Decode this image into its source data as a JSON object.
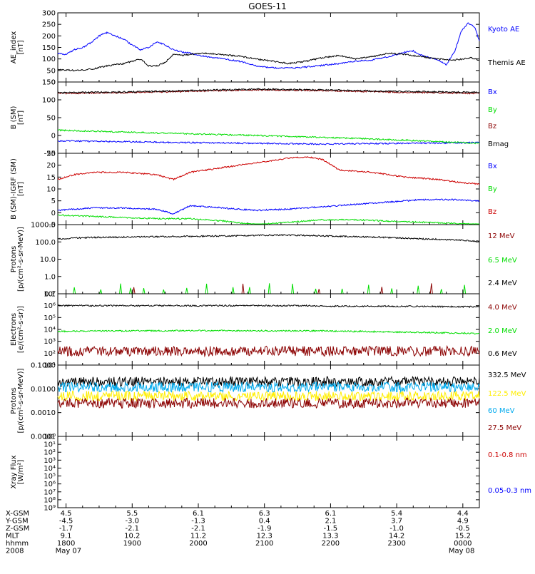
{
  "title": "GOES-11",
  "colors": {
    "black": "#000000",
    "blue": "#0000ff",
    "red": "#cc0000",
    "darkred": "#8b0000",
    "green": "#00dd00",
    "yellow": "#ffee00",
    "cyan": "#00aaee"
  },
  "chart_data": [
    {
      "type": "line",
      "ylabel": [
        "AE_index",
        "[nT]"
      ],
      "ylim": [
        0,
        300
      ],
      "scale": "linear",
      "yticks": [
        "0",
        "50",
        "100",
        "150",
        "200",
        "250",
        "300"
      ],
      "series": [
        {
          "name": "Kyoto AE",
          "color": "blue",
          "values": [
            [
              0,
              125
            ],
            [
              0.25,
              120
            ],
            [
              0.5,
              140
            ],
            [
              0.75,
              150
            ],
            [
              1.0,
              170
            ],
            [
              1.25,
              200
            ],
            [
              1.5,
              215
            ],
            [
              1.75,
              200
            ],
            [
              2.0,
              185
            ],
            [
              2.25,
              160
            ],
            [
              2.5,
              140
            ],
            [
              2.75,
              150
            ],
            [
              3.0,
              175
            ],
            [
              3.25,
              160
            ],
            [
              3.5,
              140
            ],
            [
              3.75,
              130
            ],
            [
              4.0,
              125
            ],
            [
              4.25,
              115
            ],
            [
              4.5,
              110
            ],
            [
              4.75,
              105
            ],
            [
              5.0,
              100
            ],
            [
              5.25,
              95
            ],
            [
              5.5,
              90
            ],
            [
              5.75,
              80
            ],
            [
              6.0,
              70
            ],
            [
              6.5,
              62
            ],
            [
              7.0,
              60
            ],
            [
              7.5,
              65
            ],
            [
              8.0,
              72
            ],
            [
              8.5,
              80
            ],
            [
              9.0,
              90
            ],
            [
              9.5,
              95
            ],
            [
              10.0,
              110
            ],
            [
              10.5,
              130
            ],
            [
              10.75,
              135
            ],
            [
              11.0,
              115
            ],
            [
              11.5,
              95
            ],
            [
              11.75,
              75
            ],
            [
              12.0,
              130
            ],
            [
              12.2,
              220
            ],
            [
              12.4,
              255
            ],
            [
              12.6,
              240
            ],
            [
              12.75,
              180
            ]
          ]
        },
        {
          "name": "Themis AE",
          "color": "black",
          "values": [
            [
              0,
              55
            ],
            [
              0.5,
              50
            ],
            [
              1.0,
              55
            ],
            [
              1.5,
              70
            ],
            [
              2.0,
              80
            ],
            [
              2.5,
              100
            ],
            [
              2.75,
              70
            ],
            [
              3.0,
              70
            ],
            [
              3.25,
              85
            ],
            [
              3.5,
              120
            ],
            [
              3.75,
              115
            ],
            [
              4.0,
              120
            ],
            [
              4.5,
              125
            ],
            [
              5.0,
              118
            ],
            [
              5.5,
              112
            ],
            [
              6.0,
              100
            ],
            [
              6.5,
              90
            ],
            [
              7.0,
              80
            ],
            [
              7.5,
              90
            ],
            [
              8.0,
              105
            ],
            [
              8.5,
              115
            ],
            [
              9.0,
              100
            ],
            [
              9.5,
              110
            ],
            [
              10.0,
              125
            ],
            [
              10.5,
              120
            ],
            [
              11.0,
              110
            ],
            [
              11.5,
              100
            ],
            [
              12.0,
              95
            ],
            [
              12.5,
              105
            ],
            [
              12.75,
              95
            ]
          ]
        }
      ],
      "legend": [
        "Kyoto AE",
        "Themis AE"
      ]
    },
    {
      "type": "line",
      "ylabel": [
        "B (SM)",
        "[nT]"
      ],
      "ylim": [
        -50,
        150
      ],
      "scale": "linear",
      "yticks": [
        "-50",
        "0",
        "50",
        "100",
        "150"
      ],
      "series": [
        {
          "name": "Bx",
          "color": "blue",
          "values": [
            [
              0,
              -15
            ],
            [
              4,
              -20
            ],
            [
              8,
              -24
            ],
            [
              12.75,
              -20
            ]
          ]
        },
        {
          "name": "By",
          "color": "green",
          "values": [
            [
              0,
              15
            ],
            [
              3,
              7
            ],
            [
              6,
              0
            ],
            [
              9,
              -8
            ],
            [
              11,
              -15
            ],
            [
              12.75,
              -22
            ]
          ]
        },
        {
          "name": "Bz",
          "color": "darkred",
          "values": [
            [
              0,
              118
            ],
            [
              2,
              120
            ],
            [
              4,
              124
            ],
            [
              6,
              128
            ],
            [
              8,
              126
            ],
            [
              10,
              122
            ],
            [
              12.75,
              118
            ]
          ]
        },
        {
          "name": "Bmag",
          "color": "black",
          "values": [
            [
              0,
              120
            ],
            [
              2,
              122
            ],
            [
              4,
              126
            ],
            [
              6,
              130
            ],
            [
              8,
              128
            ],
            [
              10,
              124
            ],
            [
              12.75,
              121
            ]
          ]
        }
      ],
      "legend": [
        "Bx",
        "By",
        "Bz",
        "Bmag"
      ]
    },
    {
      "type": "line",
      "ylabel": [
        "B (SM)-IGRF (SM)",
        "[nT]"
      ],
      "ylim": [
        -5,
        25
      ],
      "scale": "linear",
      "yticks": [
        "-5",
        "0",
        "5",
        "10",
        "15",
        "20",
        "25"
      ],
      "series": [
        {
          "name": "Bx",
          "color": "blue",
          "values": [
            [
              0,
              1
            ],
            [
              1,
              2
            ],
            [
              2,
              2
            ],
            [
              3,
              1.5
            ],
            [
              3.5,
              -0.5
            ],
            [
              4,
              3
            ],
            [
              5,
              2
            ],
            [
              6,
              1
            ],
            [
              7,
              1.5
            ],
            [
              8,
              2.5
            ],
            [
              9,
              3.5
            ],
            [
              10,
              4.5
            ],
            [
              11,
              5.5
            ],
            [
              12,
              5.5
            ],
            [
              12.75,
              5
            ]
          ]
        },
        {
          "name": "By",
          "color": "green",
          "values": [
            [
              0,
              -1
            ],
            [
              1,
              -1.5
            ],
            [
              2,
              -2
            ],
            [
              3,
              -2.5
            ],
            [
              4,
              -2.5
            ],
            [
              5,
              -3.5
            ],
            [
              6,
              -5
            ],
            [
              7,
              -4
            ],
            [
              8,
              -3
            ],
            [
              9,
              -3
            ],
            [
              10,
              -3.5
            ],
            [
              11,
              -4
            ],
            [
              12,
              -4.5
            ],
            [
              12.75,
              -5
            ]
          ]
        },
        {
          "name": "Bz",
          "color": "red",
          "values": [
            [
              0,
              14
            ],
            [
              0.5,
              16
            ],
            [
              1.0,
              17
            ],
            [
              2.0,
              17
            ],
            [
              3.0,
              16
            ],
            [
              3.5,
              14
            ],
            [
              4.0,
              17
            ],
            [
              5.0,
              19
            ],
            [
              6.0,
              21
            ],
            [
              7.0,
              23
            ],
            [
              7.5,
              23.5
            ],
            [
              8.0,
              22.5
            ],
            [
              8.5,
              18
            ],
            [
              9.5,
              17
            ],
            [
              10.5,
              15
            ],
            [
              11.5,
              14
            ],
            [
              12.0,
              13
            ],
            [
              12.75,
              12
            ]
          ]
        }
      ],
      "legend": [
        "Bx",
        "By",
        "Bz"
      ]
    },
    {
      "type": "line",
      "ylabel": [
        "Protons",
        "[p/(cm²-s-sr-MeV)]"
      ],
      "ylim": [
        0.1,
        1000
      ],
      "scale": "log",
      "yticks": [
        "0.1",
        "1.0",
        "10.0",
        "100.0",
        "1000.0"
      ],
      "series": [
        {
          "name": "2.4 MeV",
          "color": "black",
          "values": [
            [
              0,
              150
            ],
            [
              1,
              180
            ],
            [
              2,
              190
            ],
            [
              3,
              200
            ],
            [
              4,
              210
            ],
            [
              5,
              220
            ],
            [
              6,
              240
            ],
            [
              7,
              250
            ],
            [
              8,
              220
            ],
            [
              9,
              200
            ],
            [
              10,
              180
            ],
            [
              11,
              150
            ],
            [
              12,
              130
            ],
            [
              12.75,
              110
            ]
          ]
        },
        {
          "name": "6.5 MeV",
          "color": "green",
          "values": [
            [
              0,
              0.1
            ],
            [
              12.75,
              0.1
            ]
          ],
          "spikes": [
            0.5,
            1.3,
            1.9,
            2.2,
            2.6,
            3.2,
            3.9,
            4.5,
            5.3,
            5.8,
            6.4,
            7.1,
            7.8,
            8.6,
            9.4,
            10.1,
            10.9,
            11.6,
            12.3
          ]
        },
        {
          "name": "12 MeV",
          "color": "darkred",
          "values": [
            [
              0,
              0.1
            ],
            [
              12.75,
              0.1
            ]
          ],
          "spikes": [
            2.3,
            5.6,
            7.9,
            9.8,
            11.3
          ]
        }
      ],
      "legend": [
        "12 MeV",
        "6.5 MeV",
        "2.4 MeV"
      ]
    },
    {
      "type": "line",
      "ylabel": [
        "Electrons",
        "[e/(cm²-s-sr)]"
      ],
      "ylim": [
        10,
        10000000
      ],
      "scale": "log",
      "yticks": [
        "10¹",
        "10²",
        "10³",
        "10⁴",
        "10⁵",
        "10⁶",
        "10⁷"
      ],
      "series": [
        {
          "name": "0.6 MeV",
          "color": "black",
          "values": [
            [
              0,
              1000000
            ],
            [
              4,
              1000000
            ],
            [
              7.5,
              1000000
            ],
            [
              8,
              900000
            ],
            [
              10,
              900000
            ],
            [
              12.75,
              800000
            ]
          ]
        },
        {
          "name": "2.0 MeV",
          "color": "green",
          "values": [
            [
              0,
              7000
            ],
            [
              4,
              8000
            ],
            [
              8,
              7500
            ],
            [
              12.75,
              4500
            ]
          ]
        },
        {
          "name": "4.0 MeV",
          "color": "darkred",
          "values": [
            [
              0,
              150
            ],
            [
              12.75,
              150
            ]
          ],
          "noise": true
        }
      ],
      "legend": [
        "4.0 MeV",
        "2.0 MeV",
        "0.6 MeV"
      ]
    },
    {
      "type": "line",
      "ylabel": [
        "Protons",
        "[p/(cm²-s-sr-MeV)]"
      ],
      "ylim": [
        0.0001,
        0.1
      ],
      "scale": "log",
      "yticks": [
        "0.0001",
        "0.0010",
        "0.0100",
        "0.1000"
      ],
      "series": [
        {
          "name": "332.5 MeV",
          "color": "black",
          "values": [
            [
              0,
              0.02
            ],
            [
              12.75,
              0.02
            ]
          ],
          "noise": true
        },
        {
          "name": "122.5 MeV",
          "color": "yellow",
          "values": [
            [
              0,
              0.005
            ],
            [
              12.75,
              0.005
            ]
          ],
          "noise": true
        },
        {
          "name": "60 MeV",
          "color": "cyan",
          "values": [
            [
              0,
              0.012
            ],
            [
              12.75,
              0.012
            ]
          ],
          "noise": true
        },
        {
          "name": "27.5 MeV",
          "color": "darkred",
          "values": [
            [
              0,
              0.0025
            ],
            [
              12.75,
              0.0025
            ]
          ],
          "noise": true
        }
      ],
      "legend": [
        "332.5 MeV",
        "122.5 MeV",
        "60 MeV",
        "27.5 MeV"
      ]
    },
    {
      "type": "line",
      "ylabel": [
        "Xray Flux",
        "[W/m²]"
      ],
      "ylim": [
        1e-09,
        1
      ],
      "scale": "log",
      "yticks": [
        "10⁹",
        "10⁸",
        "10⁷",
        "10⁶",
        "10⁵",
        "10⁴",
        "10³",
        "10²",
        "10¹",
        "10⁰"
      ],
      "series": [
        {
          "name": "0.1-0.8 nm",
          "color": "red",
          "values": []
        },
        {
          "name": "0.05-0.3 nm",
          "color": "blue",
          "values": []
        }
      ],
      "legend": [
        "0.1-0.8 nm",
        "0.05-0.3 nm"
      ]
    }
  ],
  "xaxis": {
    "xlim": [
      0,
      12.75
    ],
    "tick_positions": [
      0.25,
      2.25,
      4.25,
      6.25,
      8.25,
      10.25,
      12.25
    ],
    "minor_positions": [
      0.75,
      1.25,
      1.75,
      2.75,
      3.25,
      3.75,
      4.75,
      5.25,
      5.75,
      6.75,
      7.25,
      7.75,
      8.75,
      9.25,
      9.75,
      10.75,
      11.25,
      11.75
    ],
    "row_labels": [
      "X-GSM",
      "Y-GSM",
      "Z-GSM",
      "MLT",
      "hhmm",
      "2008"
    ],
    "columns": [
      [
        "4.5",
        "-4.5",
        "-1.7",
        "9.1",
        "1800",
        "May 07"
      ],
      [
        "5.5",
        "-3.0",
        "-2.1",
        "10.2",
        "1900",
        ""
      ],
      [
        "6.1",
        "-1.3",
        "-2.1",
        "11.2",
        "2000",
        ""
      ],
      [
        "6.3",
        "0.4",
        "-1.9",
        "12.3",
        "2100",
        ""
      ],
      [
        "6.1",
        "2.1",
        "-1.5",
        "13.3",
        "2200",
        ""
      ],
      [
        "5.4",
        "3.7",
        "-1.0",
        "14.2",
        "2300",
        ""
      ],
      [
        "4.4",
        "4.9",
        "-0.5",
        "15.2",
        "0000",
        "May 08"
      ]
    ]
  }
}
